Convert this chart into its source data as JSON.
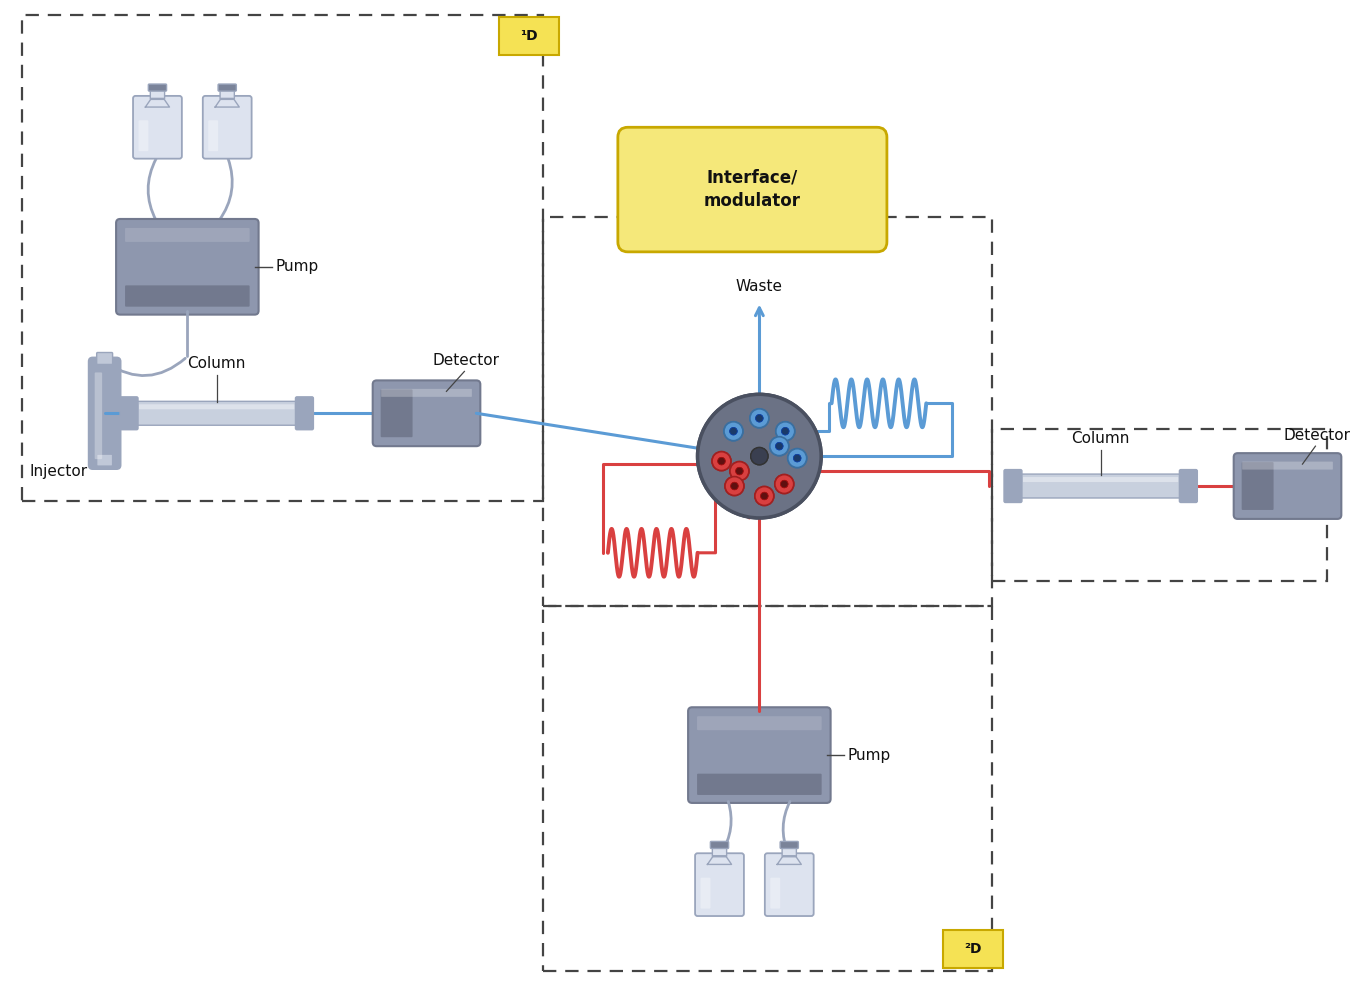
{
  "bg_color": "#ffffff",
  "blue_line": "#5b9bd5",
  "red_line": "#d94040",
  "gray_line": "#9aa5bc",
  "pump_face": "#8e97ae",
  "pump_dark": "#72798e",
  "pump_light": "#aab0c2",
  "bottle_face": "#dde3ef",
  "bottle_outline": "#9aa5bc",
  "cap_color": "#7a8399",
  "column_face": "#c8d0de",
  "column_cap": "#9aa5bc",
  "detector_face": "#8e97ae",
  "detector_dark": "#72798e",
  "injector_face": "#9aa5bc",
  "valve_face": "#6b7285",
  "valve_rim": "#4a5060",
  "port_blue_face": "#5b9bd5",
  "port_blue_edge": "#3a6fa0",
  "port_blue_dark": "#1a3a6a",
  "port_red_face": "#d94040",
  "port_red_edge": "#a02020",
  "port_red_dark": "#601010",
  "coil_blue": "#5b9bd5",
  "coil_red": "#d94040",
  "dashed_color": "#444444",
  "label_color": "#111111",
  "interface_box_face": "#f5e87a",
  "interface_box_edge": "#c8a800",
  "superscript_face": "#f5e254",
  "superscript_edge": "#c8a800",
  "label_1D": "¹D",
  "label_2D": "²D",
  "label_pump": "Pump",
  "label_column1": "Column",
  "label_column2": "Column",
  "label_detector1": "Detector",
  "label_detector2": "Detector",
  "label_injector": "Injector",
  "label_waste": "Waste",
  "label_interface": "Interface/\nmodulator"
}
